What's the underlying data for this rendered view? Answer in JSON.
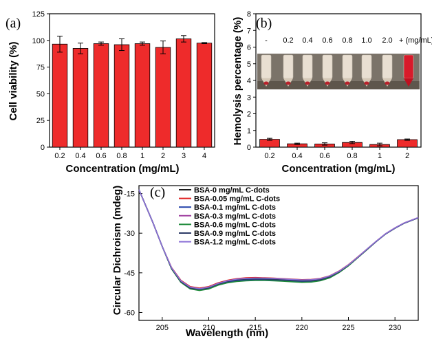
{
  "chart_data": [
    {
      "id": "a",
      "type": "bar",
      "panel_label": "(a)",
      "categories": [
        "0.2",
        "0.4",
        "0.6",
        "0.8",
        "1",
        "2",
        "3",
        "4"
      ],
      "values": [
        96.5,
        92.5,
        97,
        96,
        97,
        93.5,
        101.5,
        97.5
      ],
      "errors": [
        7.5,
        5,
        1.5,
        5.5,
        1.5,
        6,
        3,
        0.5
      ],
      "xlabel": "Concentration (mg/mL)",
      "ylabel": "Cell viability (%)",
      "ylim": [
        0,
        125
      ],
      "yticks": [
        0,
        25,
        50,
        75,
        100,
        125
      ],
      "bar_color": "#ee2b2b",
      "grid": false
    },
    {
      "id": "b",
      "type": "bar",
      "panel_label": "(b)",
      "categories": [
        "0.2",
        "0.4",
        "0.6",
        "0.8",
        "1",
        "2"
      ],
      "values": [
        0.47,
        0.2,
        0.19,
        0.28,
        0.16,
        0.45
      ],
      "errors": [
        0.06,
        0.04,
        0.07,
        0.07,
        0.08,
        0.04
      ],
      "xlabel": "Concentration (mg/mL)",
      "ylabel": "Hemolysis percentage (%)",
      "ylim": [
        0,
        8
      ],
      "yticks": [
        0,
        1,
        2,
        3,
        4,
        5,
        6,
        7,
        8
      ],
      "bar_color": "#ee2b2b",
      "grid": false,
      "inset_labels": [
        "-",
        "0.2",
        "0.4",
        "0.6",
        "0.8",
        "1.0",
        "2.0",
        "+ (mg/mL)"
      ]
    },
    {
      "id": "c",
      "type": "line",
      "panel_label": "(c)",
      "xlabel": "Wavelength (nm)",
      "ylabel": "Circular Dichroism (mdeg)",
      "xlim": [
        202.5,
        232.5
      ],
      "ylim": [
        -63,
        -12
      ],
      "xticks": [
        205,
        210,
        215,
        220,
        225,
        230
      ],
      "yticks": [
        -15,
        -30,
        -45,
        -60
      ],
      "legend_position": "top-right",
      "x": [
        202.5,
        204,
        205,
        206,
        207,
        208,
        209,
        210,
        211,
        212,
        213,
        214,
        215,
        216,
        217,
        218,
        219,
        220,
        221,
        222,
        223,
        224,
        225,
        226,
        227,
        228,
        229,
        230,
        231,
        232.5
      ],
      "series": [
        {
          "name": "BSA-0 mg/mL C-dots",
          "color": "#1a1a1a",
          "values": [
            -13.5,
            -26,
            -35,
            -43.5,
            -48.5,
            -51,
            -51.6,
            -51,
            -49.6,
            -48.7,
            -48.2,
            -47.9,
            -47.8,
            -47.8,
            -47.9,
            -48.1,
            -48.3,
            -48.5,
            -48.4,
            -47.9,
            -46.8,
            -44.8,
            -42.3,
            -39.3,
            -36.2,
            -33.1,
            -30.3,
            -28.1,
            -26.2,
            -24.2
          ]
        },
        {
          "name": "BSA-0.05 mg/mL C-dots",
          "color": "#e02020",
          "values": [
            -13.5,
            -26,
            -35,
            -43,
            -47.8,
            -50.2,
            -50.8,
            -50.2,
            -48.8,
            -47.8,
            -47.2,
            -46.9,
            -46.8,
            -46.9,
            -47.0,
            -47.2,
            -47.4,
            -47.6,
            -47.5,
            -47.1,
            -46.1,
            -44.3,
            -41.9,
            -39.0,
            -36.0,
            -33.0,
            -30.2,
            -28.0,
            -26.1,
            -24.1
          ]
        },
        {
          "name": "BSA-0.1 mg/mL C-dots",
          "color": "#1f3fa8",
          "values": [
            -13.5,
            -26,
            -35,
            -43.4,
            -48.4,
            -50.9,
            -51.5,
            -50.9,
            -49.4,
            -48.5,
            -48.0,
            -47.7,
            -47.6,
            -47.6,
            -47.7,
            -47.9,
            -48.1,
            -48.3,
            -48.2,
            -47.8,
            -46.7,
            -44.7,
            -42.2,
            -39.2,
            -36.1,
            -33.1,
            -30.3,
            -28.1,
            -26.2,
            -24.2
          ]
        },
        {
          "name": "BSA-0.3 mg/mL C-dots",
          "color": "#a040a0",
          "values": [
            -13.5,
            -26,
            -35,
            -43.2,
            -48.1,
            -50.5,
            -51.1,
            -50.5,
            -49.0,
            -48.0,
            -47.4,
            -47.1,
            -47.0,
            -47.1,
            -47.2,
            -47.4,
            -47.6,
            -47.8,
            -47.7,
            -47.3,
            -46.3,
            -44.4,
            -42.0,
            -39.1,
            -36.0,
            -33.0,
            -30.2,
            -28.0,
            -26.1,
            -24.1
          ]
        },
        {
          "name": "BSA-0.6 mg/mL C-dots",
          "color": "#1e8a3a",
          "values": [
            -13.5,
            -26,
            -35,
            -43.5,
            -48.6,
            -51.1,
            -51.7,
            -51.1,
            -49.7,
            -48.8,
            -48.3,
            -48.0,
            -47.9,
            -47.9,
            -48.0,
            -48.2,
            -48.4,
            -48.6,
            -48.5,
            -48.0,
            -46.9,
            -44.9,
            -42.4,
            -39.3,
            -36.2,
            -33.1,
            -30.3,
            -28.1,
            -26.2,
            -24.2
          ]
        },
        {
          "name": "BSA-0.9 mg/mL C-dots",
          "color": "#2c3a66",
          "values": [
            -13.5,
            -26,
            -35,
            -43.3,
            -48.3,
            -50.8,
            -51.3,
            -50.7,
            -49.3,
            -48.3,
            -47.7,
            -47.4,
            -47.3,
            -47.4,
            -47.5,
            -47.7,
            -47.9,
            -48.1,
            -48.0,
            -47.6,
            -46.5,
            -44.6,
            -42.1,
            -39.2,
            -36.1,
            -33.1,
            -30.3,
            -28.1,
            -26.2,
            -24.2
          ]
        },
        {
          "name": "BSA-1.2 mg/mL C-dots",
          "color": "#8a70d6",
          "values": [
            -13.5,
            -26,
            -35,
            -43.1,
            -48.0,
            -50.4,
            -51.0,
            -50.4,
            -49.0,
            -48.0,
            -47.4,
            -47.1,
            -47.0,
            -47.0,
            -47.1,
            -47.3,
            -47.5,
            -47.7,
            -47.6,
            -47.2,
            -46.2,
            -44.4,
            -42.0,
            -39.1,
            -36.0,
            -33.0,
            -30.2,
            -28.0,
            -26.1,
            -24.1
          ]
        }
      ]
    }
  ]
}
